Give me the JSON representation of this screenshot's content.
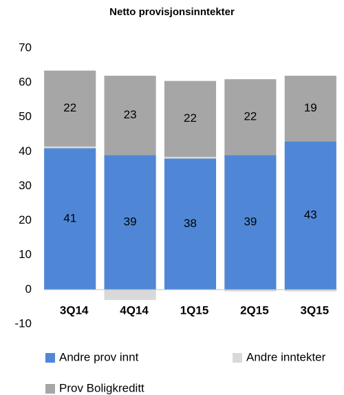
{
  "chart_data": {
    "type": "stacked_bar",
    "title": "Netto provisjonsinntekter",
    "categories": [
      "3Q14",
      "4Q14",
      "1Q15",
      "2Q15",
      "3Q15"
    ],
    "series": [
      {
        "name": "Andre prov innt",
        "color": "#4f87d6",
        "values": [
          41,
          39,
          38,
          39,
          43
        ]
      },
      {
        "name": "Andre inntekter",
        "color": "#d9d9d9",
        "values": [
          0.5,
          -3,
          0.5,
          -0.5,
          -0.5
        ]
      },
      {
        "name": "Prov Boligkreditt",
        "color": "#a6a6a6",
        "values": [
          22,
          23,
          22,
          22,
          19
        ]
      }
    ],
    "ylim": [
      -10,
      70
    ],
    "yticks": [
      -10,
      0,
      10,
      20,
      30,
      40,
      50,
      60,
      70
    ],
    "grid": false
  }
}
